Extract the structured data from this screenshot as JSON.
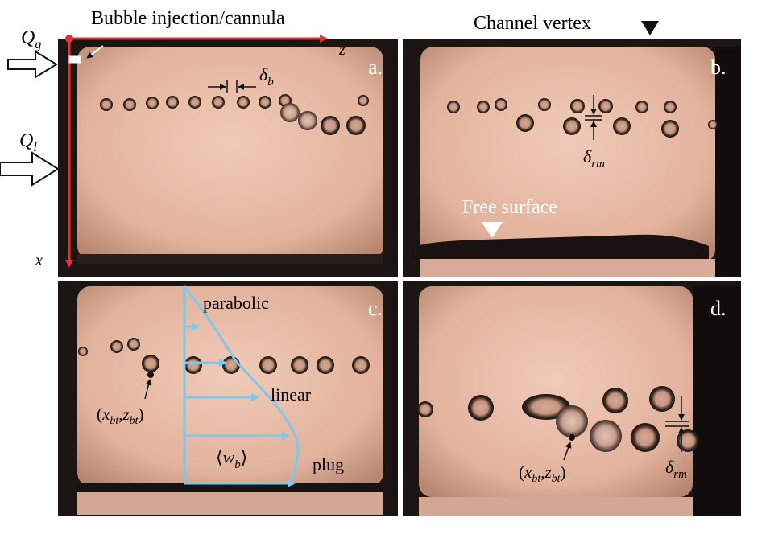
{
  "header": {
    "left_title": "Bubble injection/cannula",
    "right_title": "Channel vertex"
  },
  "axes": {
    "z_label": "z",
    "x_label": "x"
  },
  "flows": {
    "gas_label": "Q",
    "gas_sub": "g",
    "liquid_label": "Q",
    "liquid_sub": "l"
  },
  "panels": [
    {
      "id": "a",
      "label": "a."
    },
    {
      "id": "b",
      "label": "b."
    },
    {
      "id": "c",
      "label": "c."
    },
    {
      "id": "d",
      "label": "d."
    }
  ],
  "annotations": {
    "delta_b": {
      "sym": "δ",
      "sub": "b"
    },
    "delta_rm": {
      "sym": "δ",
      "sub": "rm"
    },
    "free_surface": "Free surface",
    "parabolic": "parabolic",
    "linear": "linear",
    "plug": "plug",
    "mean_velocity": {
      "open": "⟨",
      "sym": "w",
      "sub": "b",
      "close": "⟩"
    },
    "bubble_pos": {
      "open": "(",
      "x": "x",
      "x_sub": "bt",
      "comma": ",",
      "z": "z",
      "z_sub": "bt",
      "close": ")"
    }
  },
  "colors": {
    "axis_red": "#e53232",
    "profile_blue": "#7ec8e8",
    "panel_fill": "#e6b9a5",
    "panel_frame": "#1b1514"
  }
}
